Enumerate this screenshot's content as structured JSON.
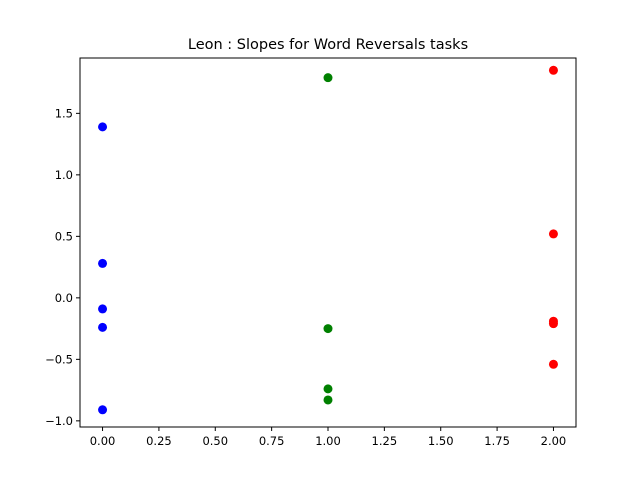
{
  "chart_data": {
    "type": "scatter",
    "title": "Leon : Slopes for Word Reversals tasks",
    "xlabel": "",
    "ylabel": "",
    "xlim": [
      -0.1,
      2.1
    ],
    "ylim": [
      -1.05,
      1.95
    ],
    "xticks": [
      0.0,
      0.25,
      0.5,
      0.75,
      1.0,
      1.25,
      1.5,
      1.75,
      2.0
    ],
    "xtick_labels": [
      "0.00",
      "0.25",
      "0.50",
      "0.75",
      "1.00",
      "1.25",
      "1.50",
      "1.75",
      "2.00"
    ],
    "yticks": [
      -1.0,
      -0.5,
      0.0,
      0.5,
      1.0,
      1.5
    ],
    "ytick_labels": [
      "−1.0",
      "−0.5",
      "0.0",
      "0.5",
      "1.0",
      "1.5"
    ],
    "grid": false,
    "legend": "none",
    "series": [
      {
        "color": "#0000ff",
        "points": [
          {
            "x": 0,
            "y": 1.39
          },
          {
            "x": 0,
            "y": 0.28
          },
          {
            "x": 0,
            "y": -0.09
          },
          {
            "x": 0,
            "y": -0.24
          },
          {
            "x": 0,
            "y": -0.91
          }
        ]
      },
      {
        "color": "#008000",
        "points": [
          {
            "x": 1,
            "y": 1.79
          },
          {
            "x": 1,
            "y": -0.25
          },
          {
            "x": 1,
            "y": -0.74
          },
          {
            "x": 1,
            "y": -0.83
          }
        ]
      },
      {
        "color": "#ff0000",
        "points": [
          {
            "x": 2,
            "y": 1.85
          },
          {
            "x": 2,
            "y": 0.52
          },
          {
            "x": 2,
            "y": -0.19
          },
          {
            "x": 2,
            "y": -0.21
          },
          {
            "x": 2,
            "y": -0.54
          }
        ]
      }
    ]
  }
}
